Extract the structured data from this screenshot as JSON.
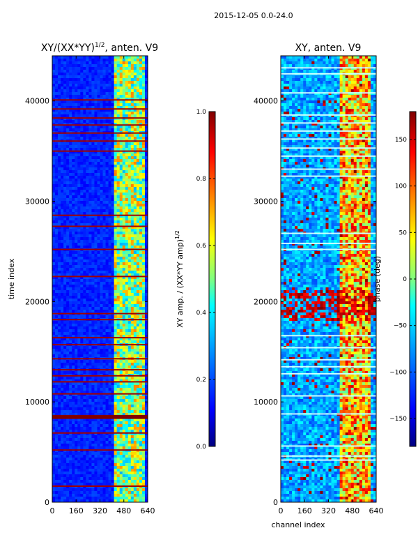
{
  "figure_title": "2015-12-05 0.0-24.0",
  "colors": {
    "jet": [
      "#000080",
      "#0000ff",
      "#0080ff",
      "#00ffff",
      "#80ff80",
      "#ffff00",
      "#ff8000",
      "#ff0000",
      "#800000"
    ]
  },
  "chart_data": [
    {
      "type": "heatmap",
      "title": "XY/(XX*YY)",
      "title_exponent": "1/2",
      "title_suffix": ", anten. V9",
      "xlabel": "",
      "ylabel": "time index",
      "xlim": [
        0,
        640
      ],
      "ylim": [
        0,
        44500
      ],
      "xticks": [
        0,
        160,
        320,
        480,
        640
      ],
      "yticks": [
        0,
        10000,
        20000,
        30000,
        40000
      ],
      "colorbar": {
        "label": "XY amp. / (XX*YY amp)",
        "label_exponent": "1/2",
        "range": [
          0.0,
          1.0
        ],
        "ticks": [
          0.0,
          0.2,
          0.4,
          0.6,
          0.8,
          1.0
        ],
        "tick_labels": [
          "0.0",
          "0.2",
          "0.4",
          "0.6",
          "0.8",
          "1.0"
        ]
      },
      "bright_channel_band": [
        410,
        620
      ],
      "flagged_rows": [
        8400,
        8600,
        1600,
        5200,
        6900,
        10800,
        12000,
        12600,
        13200,
        14300,
        15700,
        16400,
        18200,
        18800,
        22500,
        25200,
        27500,
        28600,
        35000,
        36000,
        36800,
        37600,
        38300,
        39200,
        40100
      ]
    },
    {
      "type": "heatmap",
      "title": "XY, anten. V9",
      "xlabel": "channel index",
      "ylabel": "",
      "xlim": [
        0,
        640
      ],
      "ylim": [
        0,
        44500
      ],
      "xticks": [
        0,
        160,
        320,
        480,
        640
      ],
      "yticks": [
        0,
        10000,
        20000,
        30000,
        40000
      ],
      "colorbar": {
        "label": "phase (deg)",
        "range": [
          -180,
          180
        ],
        "ticks": [
          -150,
          -100,
          -50,
          0,
          50,
          100,
          150
        ],
        "tick_labels": [
          "−150",
          "−100",
          "−50",
          "0",
          "50",
          "100",
          "150"
        ]
      },
      "bright_channel_band": [
        390,
        600
      ],
      "saturated_time_band": [
        18000,
        21000
      ],
      "flagged_rows": [
        4200,
        4600,
        5600,
        8800,
        10600,
        12800,
        13500,
        14200,
        15400,
        16600,
        25200,
        25800,
        26800,
        32500,
        33200,
        34500,
        35300,
        36200,
        37000,
        37800,
        38600,
        40800,
        42700,
        43300
      ]
    }
  ]
}
